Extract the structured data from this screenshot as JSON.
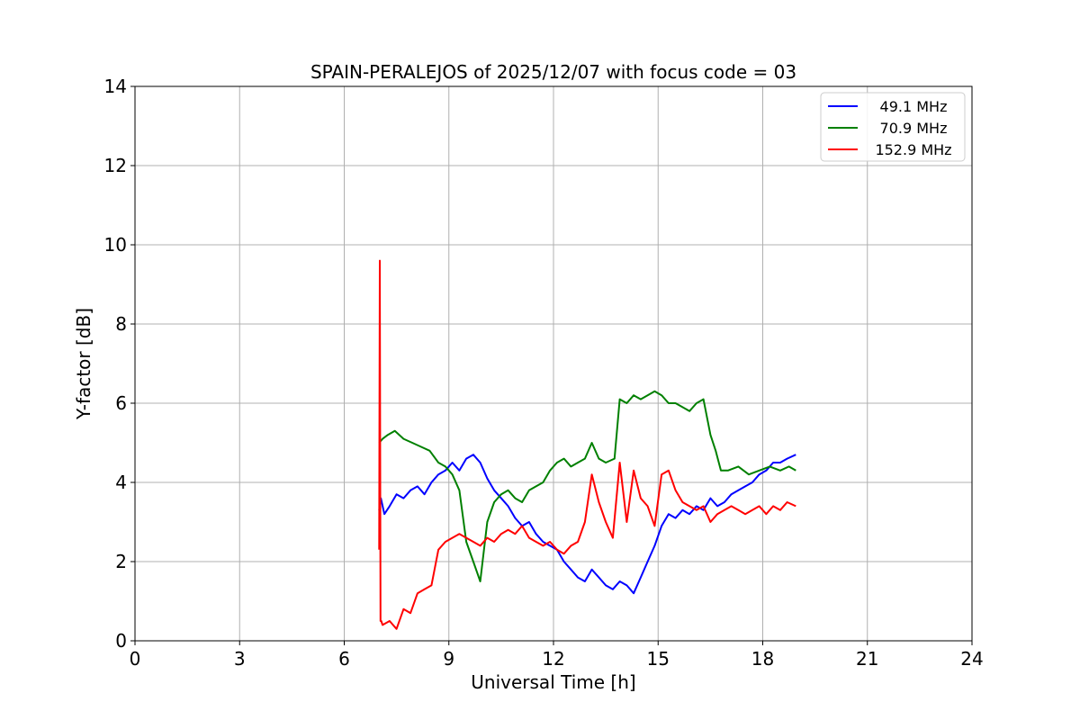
{
  "chart_data": {
    "type": "line",
    "title": "SPAIN-PERALEJOS of 2025/12/07 with focus code = 03",
    "xlabel": "Universal Time [h]",
    "ylabel": "Y-factor [dB]",
    "xlim": [
      0,
      24
    ],
    "ylim": [
      0,
      14
    ],
    "xticks": [
      0,
      3,
      6,
      9,
      12,
      15,
      18,
      21,
      24
    ],
    "yticks": [
      0,
      2,
      4,
      6,
      8,
      10,
      12,
      14
    ],
    "grid": true,
    "legend_position": "top-right",
    "series": [
      {
        "name": "49.1 MHz",
        "color": "#0000ff",
        "x": [
          7.0,
          7.05,
          7.15,
          7.3,
          7.5,
          7.7,
          7.9,
          8.1,
          8.3,
          8.5,
          8.7,
          8.9,
          9.1,
          9.3,
          9.5,
          9.7,
          9.9,
          10.1,
          10.3,
          10.5,
          10.7,
          10.9,
          11.1,
          11.3,
          11.5,
          11.7,
          11.9,
          12.1,
          12.3,
          12.5,
          12.7,
          12.9,
          13.1,
          13.3,
          13.5,
          13.7,
          13.9,
          14.1,
          14.3,
          14.5,
          14.7,
          14.9,
          15.1,
          15.3,
          15.5,
          15.7,
          15.9,
          16.1,
          16.3,
          16.5,
          16.7,
          16.9,
          17.1,
          17.3,
          17.5,
          17.7,
          17.9,
          18.1,
          18.3,
          18.5,
          18.7,
          18.95
        ],
        "y": [
          3.3,
          3.6,
          3.2,
          3.4,
          3.7,
          3.6,
          3.8,
          3.9,
          3.7,
          4.0,
          4.2,
          4.3,
          4.5,
          4.3,
          4.6,
          4.7,
          4.5,
          4.1,
          3.8,
          3.6,
          3.4,
          3.1,
          2.9,
          3.0,
          2.7,
          2.5,
          2.4,
          2.3,
          2.0,
          1.8,
          1.6,
          1.5,
          1.8,
          1.6,
          1.4,
          1.3,
          1.5,
          1.4,
          1.2,
          1.6,
          2.0,
          2.4,
          2.9,
          3.2,
          3.1,
          3.3,
          3.2,
          3.4,
          3.3,
          3.6,
          3.4,
          3.5,
          3.7,
          3.8,
          3.9,
          4.0,
          4.2,
          4.3,
          4.5,
          4.5,
          4.6,
          4.7
        ]
      },
      {
        "name": "70.9 MHz",
        "color": "#008000",
        "x": [
          7.0,
          7.1,
          7.25,
          7.45,
          7.7,
          7.95,
          8.2,
          8.45,
          8.7,
          8.9,
          9.1,
          9.3,
          9.5,
          9.7,
          9.9,
          10.1,
          10.3,
          10.5,
          10.7,
          10.9,
          11.1,
          11.3,
          11.5,
          11.7,
          11.9,
          12.1,
          12.3,
          12.5,
          12.7,
          12.9,
          13.1,
          13.3,
          13.5,
          13.75,
          13.9,
          14.1,
          14.3,
          14.5,
          14.7,
          14.9,
          15.1,
          15.3,
          15.5,
          15.7,
          15.9,
          16.1,
          16.3,
          16.5,
          16.65,
          16.8,
          17.0,
          17.3,
          17.6,
          17.9,
          18.2,
          18.5,
          18.75,
          18.95
        ],
        "y": [
          5.0,
          5.1,
          5.2,
          5.3,
          5.1,
          5.0,
          4.9,
          4.8,
          4.5,
          4.4,
          4.2,
          3.8,
          2.5,
          2.0,
          1.5,
          3.0,
          3.5,
          3.7,
          3.8,
          3.6,
          3.5,
          3.8,
          3.9,
          4.0,
          4.3,
          4.5,
          4.6,
          4.4,
          4.5,
          4.6,
          5.0,
          4.6,
          4.5,
          4.6,
          6.1,
          6.0,
          6.2,
          6.1,
          6.2,
          6.3,
          6.2,
          6.0,
          6.0,
          5.9,
          5.8,
          6.0,
          6.1,
          5.2,
          4.8,
          4.3,
          4.3,
          4.4,
          4.2,
          4.3,
          4.4,
          4.3,
          4.4,
          4.3
        ]
      },
      {
        "name": "152.9 MHz",
        "color": "#ff0000",
        "x": [
          7.0,
          7.02,
          7.04,
          7.06,
          7.1,
          7.3,
          7.5,
          7.7,
          7.9,
          8.1,
          8.3,
          8.5,
          8.7,
          8.9,
          9.1,
          9.3,
          9.5,
          9.7,
          9.9,
          10.1,
          10.3,
          10.5,
          10.7,
          10.9,
          11.1,
          11.3,
          11.5,
          11.7,
          11.9,
          12.1,
          12.3,
          12.5,
          12.7,
          12.9,
          13.1,
          13.3,
          13.5,
          13.7,
          13.9,
          14.1,
          14.3,
          14.5,
          14.7,
          14.9,
          15.1,
          15.3,
          15.5,
          15.7,
          15.9,
          16.1,
          16.3,
          16.5,
          16.7,
          16.9,
          17.1,
          17.3,
          17.5,
          17.7,
          17.9,
          18.1,
          18.3,
          18.5,
          18.7,
          18.95
        ],
        "y": [
          2.3,
          9.6,
          0.5,
          0.5,
          0.4,
          0.5,
          0.3,
          0.8,
          0.7,
          1.2,
          1.3,
          1.4,
          2.3,
          2.5,
          2.6,
          2.7,
          2.6,
          2.5,
          2.4,
          2.6,
          2.5,
          2.7,
          2.8,
          2.7,
          2.9,
          2.6,
          2.5,
          2.4,
          2.5,
          2.3,
          2.2,
          2.4,
          2.5,
          3.0,
          4.2,
          3.5,
          3.0,
          2.6,
          4.5,
          3.0,
          4.3,
          3.6,
          3.4,
          2.9,
          4.2,
          4.3,
          3.8,
          3.5,
          3.4,
          3.3,
          3.4,
          3.0,
          3.2,
          3.3,
          3.4,
          3.3,
          3.2,
          3.3,
          3.4,
          3.2,
          3.4,
          3.3,
          3.5,
          3.4
        ]
      }
    ]
  }
}
